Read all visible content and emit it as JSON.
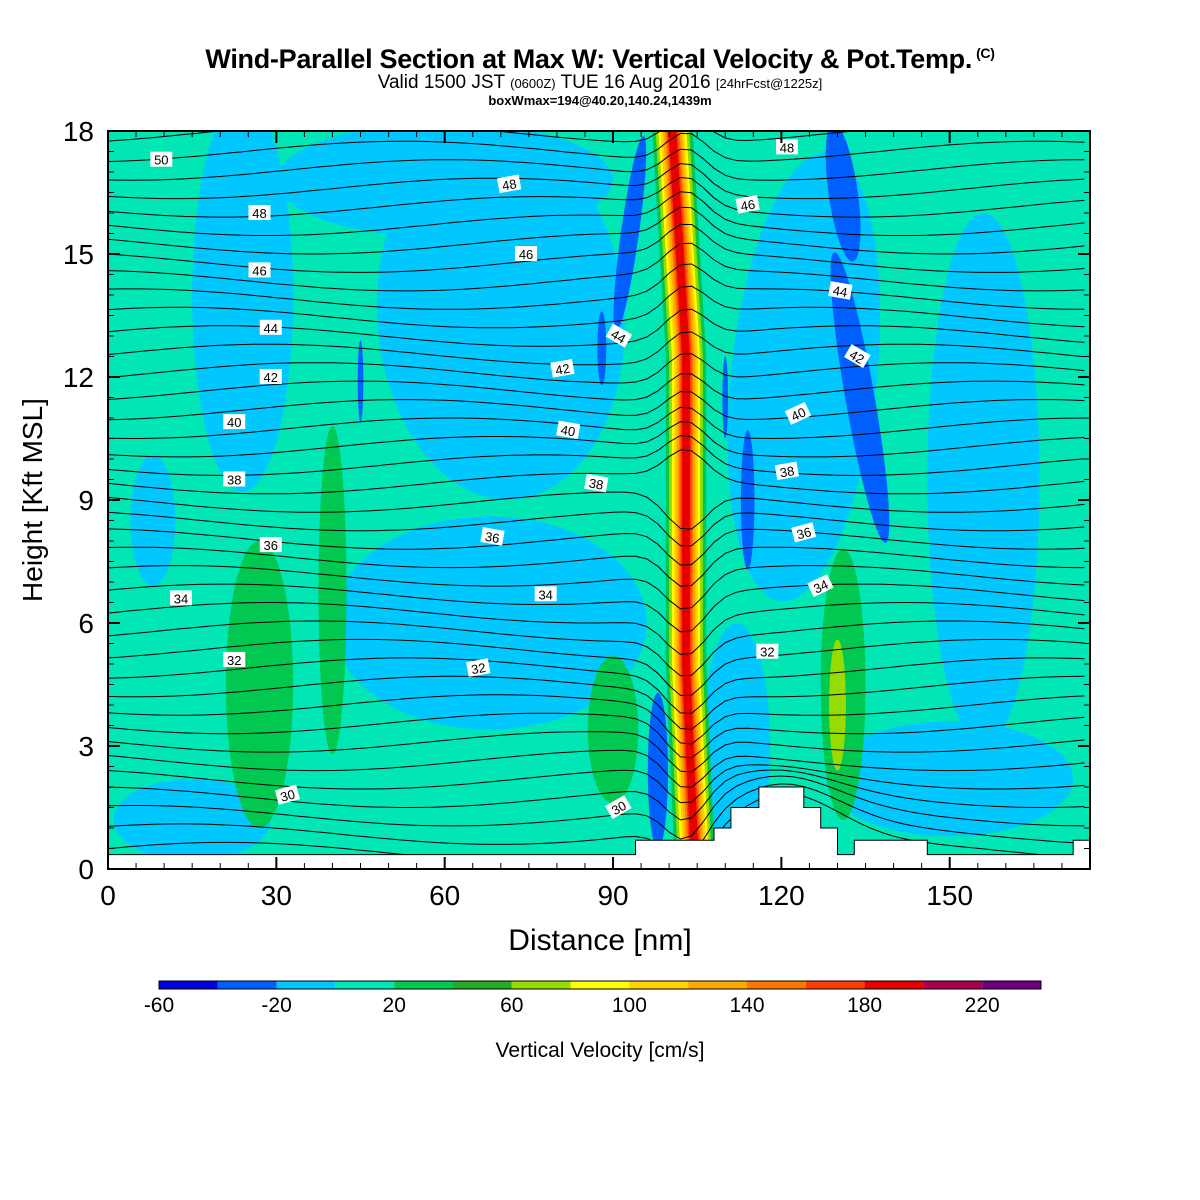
{
  "chart_data": {
    "type": "heatmap",
    "title": "Wind-Parallel Section at Max W: Vertical Velocity & Pot.Temp.",
    "title_mark": "(C)",
    "subtitle_parts": {
      "a": "Valid 1500 JST",
      "b": "(0600Z)",
      "c": "TUE 16 Aug 2016",
      "d": "[24hrFcst@1225z]"
    },
    "subtitle2": "boxWmax=194@40.20,140.24,1439m",
    "xlabel": "Distance [nm]",
    "ylabel": "Height [Kft MSL]",
    "xlim": [
      0,
      175
    ],
    "ylim": [
      0,
      18
    ],
    "xticks": [
      0,
      30,
      60,
      90,
      120,
      150
    ],
    "yticks": [
      0,
      3,
      6,
      9,
      12,
      15,
      18
    ],
    "colorbar": {
      "label": "Vertical Velocity [cm/s]",
      "levels": [
        -60,
        -40,
        -20,
        0,
        20,
        40,
        60,
        80,
        100,
        120,
        140,
        160,
        180,
        200,
        220,
        240
      ],
      "tick_labels": [
        -60,
        -20,
        20,
        60,
        100,
        140,
        180,
        220
      ],
      "colors": [
        "#0000e0",
        "#0060ff",
        "#00c8ff",
        "#00e6b4",
        "#00c850",
        "#24ad24",
        "#96dc00",
        "#ffff00",
        "#ffd200",
        "#ffaa00",
        "#ff7800",
        "#ff3c00",
        "#e60000",
        "#aa0050",
        "#6e0080"
      ]
    },
    "theta_contour_labels": [
      30,
      32,
      34,
      36,
      38,
      40,
      42,
      44,
      46,
      48,
      50
    ],
    "max_updraft": {
      "distance": 103,
      "height_range": [
        0.5,
        18
      ],
      "peak_cm_s": 194
    }
  }
}
